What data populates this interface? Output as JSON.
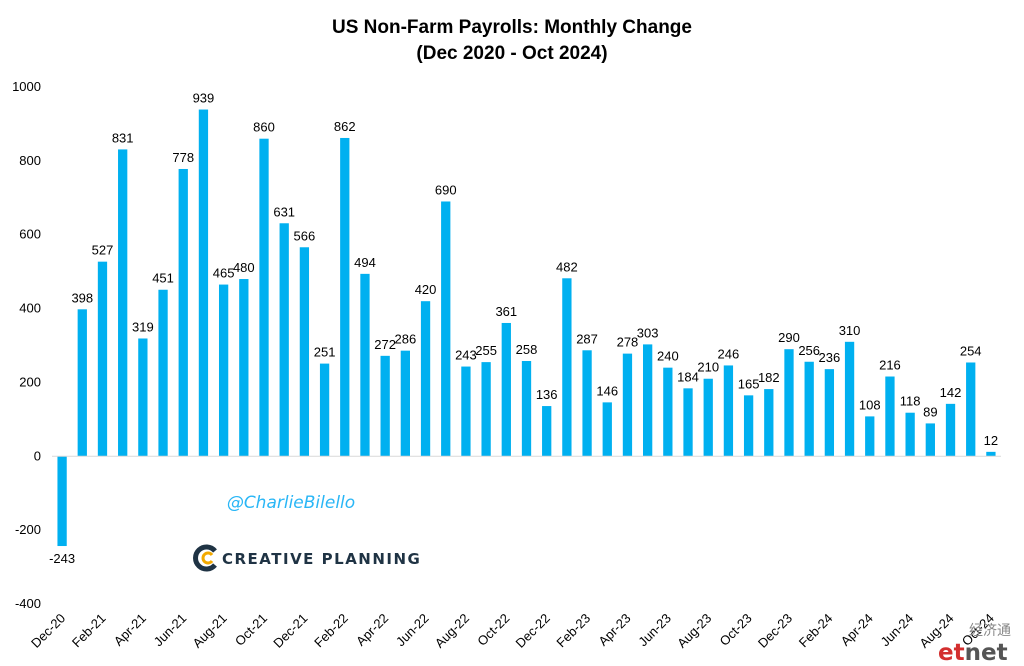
{
  "chart_data": {
    "type": "bar",
    "title": "US Non-Farm Payrolls: Monthly Change",
    "subtitle": "(Dec 2020 - Oct 2024)",
    "ylim": [
      -400,
      1000
    ],
    "yticks": [
      -400,
      -200,
      0,
      200,
      400,
      600,
      800,
      1000
    ],
    "bar_color": "#00B0F0",
    "grid": false,
    "categories": [
      "Dec-20",
      "Jan-21",
      "Feb-21",
      "Mar-21",
      "Apr-21",
      "May-21",
      "Jun-21",
      "Jul-21",
      "Aug-21",
      "Sep-21",
      "Oct-21",
      "Nov-21",
      "Dec-21",
      "Jan-22",
      "Feb-22",
      "Mar-22",
      "Apr-22",
      "May-22",
      "Jun-22",
      "Jul-22",
      "Aug-22",
      "Sep-22",
      "Oct-22",
      "Nov-22",
      "Dec-22",
      "Jan-23",
      "Feb-23",
      "Mar-23",
      "Apr-23",
      "May-23",
      "Jun-23",
      "Jul-23",
      "Aug-23",
      "Sep-23",
      "Oct-23",
      "Nov-23",
      "Dec-23",
      "Jan-24",
      "Feb-24",
      "Mar-24",
      "Apr-24",
      "May-24",
      "Jun-24",
      "Jul-24",
      "Aug-24",
      "Sep-24",
      "Oct-24"
    ],
    "values": [
      -243,
      398,
      527,
      831,
      319,
      451,
      778,
      939,
      465,
      480,
      860,
      631,
      566,
      251,
      862,
      494,
      272,
      286,
      420,
      690,
      243,
      255,
      361,
      258,
      136,
      482,
      287,
      146,
      278,
      303,
      240,
      184,
      210,
      246,
      165,
      182,
      290,
      256,
      236,
      310,
      108,
      216,
      118,
      89,
      142,
      254,
      12
    ],
    "xtick_labels": [
      "Dec-20",
      "Feb-21",
      "Apr-21",
      "Jun-21",
      "Aug-21",
      "Oct-21",
      "Dec-21",
      "Feb-22",
      "Apr-22",
      "Jun-22",
      "Aug-22",
      "Oct-22",
      "Dec-22",
      "Feb-23",
      "Apr-23",
      "Jun-23",
      "Aug-23",
      "Oct-23",
      "Dec-23",
      "Feb-24",
      "Apr-24",
      "Jun-24",
      "Aug-24",
      "Oct-24"
    ]
  },
  "annotations": {
    "handle": "@CharlieBilello",
    "brand": "CREATIVE PLANNING",
    "brand_icon": "creative-planning-c-icon",
    "watermark_cn": "经济通",
    "watermark_et": "et",
    "watermark_net": "net"
  },
  "colors": {
    "bar": "#00B0F0",
    "handle": "#29B6F6",
    "brand": "#1f3344",
    "watermark_et": "#d32f2f",
    "watermark_net": "#555555"
  }
}
